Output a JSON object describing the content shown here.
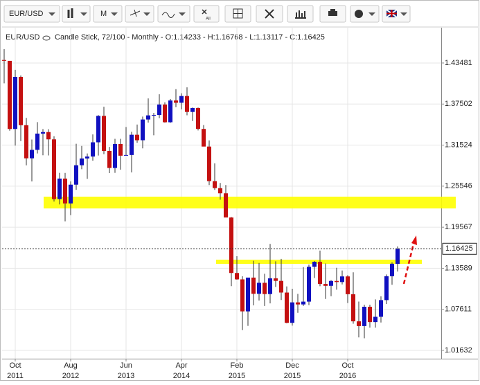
{
  "toolbar": {
    "symbol": "EUR/USD",
    "period": "M",
    "zoom_all": "All"
  },
  "header": {
    "symbol": "EUR/USD",
    "info": "Candle Stick, 72/100 - Monthly - O:1.14233 - H:1.16768 - L:1.13117 - C:1.16425"
  },
  "chart_data": {
    "type": "candlestick",
    "categories": [
      null,
      null,
      "Oct 2011",
      null,
      null,
      null,
      null,
      null,
      null,
      null,
      null,
      null,
      "Aug 2012",
      null,
      null,
      null,
      null,
      null,
      null,
      null,
      null,
      null,
      "Jun 2013",
      null,
      null,
      null,
      null,
      null,
      null,
      null,
      null,
      null,
      "Apr 2014",
      null,
      null,
      null,
      null,
      null,
      null,
      null,
      null,
      null,
      "Feb 2015",
      null,
      null,
      null,
      null,
      null,
      null,
      null,
      null,
      null,
      "Dec 2015",
      null,
      null,
      null,
      null,
      null,
      null,
      null,
      null,
      null,
      "Oct 2016",
      null,
      null,
      null,
      null,
      null,
      null,
      null,
      null,
      null
    ],
    "open": [
      1.4392,
      1.4379,
      1.3387,
      1.4146,
      1.3442,
      1.296,
      1.3083,
      1.332,
      1.3342,
      1.3236,
      1.2366,
      1.2665,
      1.2303,
      1.2576,
      1.2859,
      1.2958,
      1.2986,
      1.3193,
      1.3578,
      1.3067,
      1.2819,
      1.3168,
      1.2998,
      1.3008,
      1.3303,
      1.3223,
      1.3525,
      1.3585,
      1.3591,
      1.3743,
      1.3485,
      1.3802,
      1.3769,
      1.3867,
      1.3635,
      1.3692,
      1.3388,
      1.3131,
      1.2628,
      1.2526,
      1.245,
      1.2098,
      1.129,
      1.1197,
      1.0731,
      1.1223,
      1.0987,
      1.1147,
      1.0983,
      1.1212,
      1.1175,
      1.1005,
      1.0564,
      1.0862,
      1.0832,
      1.0873,
      1.138,
      1.1453,
      1.113,
      1.1103,
      1.1174,
      1.1158,
      1.124,
      1.0981,
      1.0586,
      1.0517,
      1.0798,
      1.0575,
      1.0652,
      1.0895,
      1.1242,
      1.14233
    ],
    "high": [
      1.4549,
      1.4372,
      1.4248,
      1.4166,
      1.3548,
      1.3234,
      1.3487,
      1.3386,
      1.3384,
      1.3282,
      1.2748,
      1.2747,
      1.2624,
      1.3172,
      1.314,
      1.3031,
      1.3308,
      1.3589,
      1.3711,
      1.3126,
      1.3244,
      1.3243,
      1.3416,
      1.3346,
      1.3452,
      1.3568,
      1.3832,
      1.362,
      1.3893,
      1.3775,
      1.3824,
      1.3967,
      1.3906,
      1.3993,
      1.37,
      1.37,
      1.3444,
      1.3221,
      1.2887,
      1.2601,
      1.257,
      1.2105,
      1.1534,
      1.1242,
      1.1214,
      1.1467,
      1.1436,
      1.1278,
      1.1714,
      1.146,
      1.1495,
      1.1094,
      1.106,
      1.0986,
      1.1376,
      1.1412,
      1.1464,
      1.1616,
      1.1428,
      1.1186,
      1.1366,
      1.1327,
      1.1258,
      1.13,
      1.0874,
      1.0829,
      1.0828,
      1.0906,
      1.095,
      1.1268,
      1.1446,
      1.16768
    ],
    "low": [
      1.4051,
      1.3362,
      1.3145,
      1.3211,
      1.2858,
      1.2624,
      1.3031,
      1.3004,
      1.3002,
      1.2331,
      1.2288,
      1.2042,
      1.2132,
      1.2501,
      1.2801,
      1.2661,
      1.2926,
      1.3,
      1.302,
      1.2745,
      1.2748,
      1.2795,
      1.3007,
      1.2755,
      1.3185,
      1.3105,
      1.348,
      1.3295,
      1.3545,
      1.3479,
      1.3477,
      1.3705,
      1.3672,
      1.3586,
      1.3503,
      1.3366,
      1.3133,
      1.2571,
      1.25,
      1.2358,
      1.2099,
      1.1098,
      1.1193,
      1.0458,
      1.052,
      1.0819,
      1.0889,
      1.0809,
      1.0848,
      1.1087,
      1.0897,
      1.0558,
      1.0523,
      1.071,
      1.0809,
      1.0822,
      1.1217,
      1.1097,
      1.0912,
      1.0952,
      1.1046,
      1.1123,
      1.0852,
      1.0551,
      1.0352,
      1.034,
      1.0494,
      1.0495,
      1.0569,
      1.0839,
      1.1118,
      1.13117
    ],
    "close": [
      1.4379,
      1.3387,
      1.4146,
      1.3442,
      1.296,
      1.3083,
      1.332,
      1.3342,
      1.3236,
      1.2366,
      1.2665,
      1.2303,
      1.2576,
      1.2859,
      1.2958,
      1.2986,
      1.3193,
      1.3578,
      1.3067,
      1.2819,
      1.3168,
      1.2998,
      1.3008,
      1.3303,
      1.3223,
      1.3525,
      1.3585,
      1.3591,
      1.3743,
      1.3485,
      1.3802,
      1.3769,
      1.3867,
      1.3635,
      1.3692,
      1.3388,
      1.3131,
      1.2628,
      1.2526,
      1.245,
      1.2098,
      1.129,
      1.1197,
      1.0731,
      1.1223,
      1.0987,
      1.1147,
      1.0983,
      1.1212,
      1.1175,
      1.1005,
      1.0564,
      1.0862,
      1.0832,
      1.0873,
      1.138,
      1.1453,
      1.113,
      1.1103,
      1.1174,
      1.1158,
      1.124,
      1.0981,
      1.0586,
      1.0517,
      1.0798,
      1.0575,
      1.0652,
      1.0895,
      1.1242,
      1.1425,
      1.16425
    ],
    "up_color": "#1010c0",
    "down_color": "#c41010",
    "ylim": [
      1.0042,
      1.4862
    ],
    "yticks": [
      1.01632,
      1.07611,
      1.13589,
      1.19567,
      1.25546,
      1.31524,
      1.37502,
      1.43481
    ],
    "grid": true
  }
}
